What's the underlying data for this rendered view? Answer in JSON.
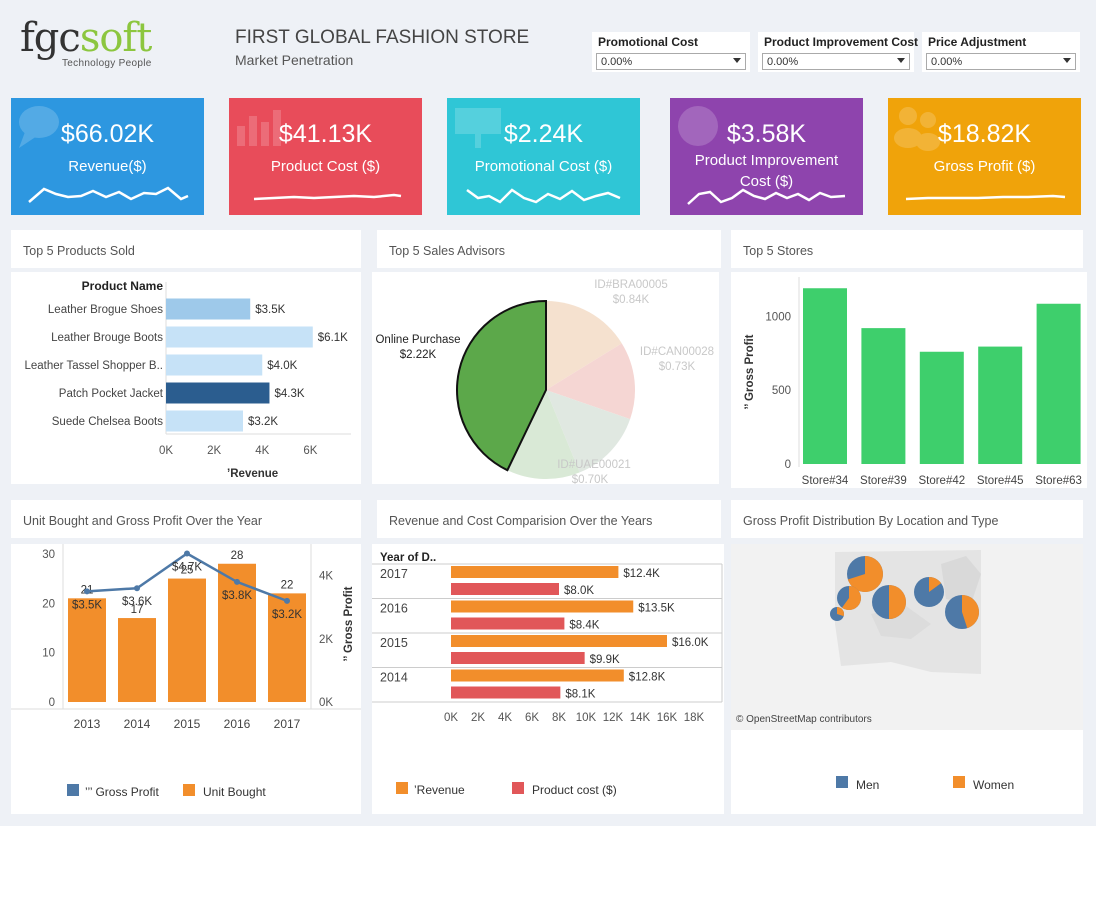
{
  "header": {
    "logo_main": "fgc",
    "logo_accent": "soft",
    "logo_tagline": "Technology People",
    "title": "FIRST GLOBAL FASHION STORE",
    "subtitle": "Market Penetration"
  },
  "params": [
    {
      "label": "Promotional Cost",
      "value": "0.00%"
    },
    {
      "label": "Product Improvement Cost",
      "value": "0.00%"
    },
    {
      "label": "Price Adjustment",
      "value": "0.00%"
    }
  ],
  "kpis": [
    {
      "value": "$66.02K",
      "label": "Revenue($)",
      "color": "#2d97e0"
    },
    {
      "value": "$41.13K",
      "label": "Product Cost ($)",
      "color": "#e84c5a"
    },
    {
      "value": "$2.24K",
      "label": "Promotional Cost ($)",
      "color": "#2fc6d6"
    },
    {
      "value": "$3.58K",
      "label": "Product Improvement Cost ($)",
      "color": "#8e44ad"
    },
    {
      "value": "$18.82K",
      "label": "Gross Profit ($)",
      "color": "#f0a30a"
    }
  ],
  "panels": {
    "products_title": "Top 5 Products Sold",
    "advisors_title": "Top 5 Sales Advisors",
    "stores_title": "Top 5 Stores",
    "units_title": "Unit Bought and Gross Profit Over the Year",
    "revcost_title": "Revenue and Cost Comparision Over the Years",
    "geo_title": "Gross Profit Distribution By Location and Type"
  },
  "chart_data": [
    {
      "type": "bar",
      "orientation": "horizontal",
      "title": "Top 5 Products Sold",
      "categories_header": "Product Name",
      "categories": [
        "Leather Brogue Shoes",
        "Leather Brouge Boots",
        "Leather Tassel Shopper B..",
        "Patch Pocket Jacket",
        "Suede Chelsea Boots"
      ],
      "values": [
        3.5,
        6.1,
        4.0,
        4.3,
        3.2
      ],
      "labels": [
        "$3.5K",
        "$6.1K",
        "$4.0K",
        "$4.3K",
        "$3.2K"
      ],
      "colors": [
        "#9ec9ea",
        "#c6e2f7",
        "#c6e2f7",
        "#2b5d8f",
        "#c6e2f7"
      ],
      "xlabel": "’Revenue",
      "xticks": [
        "0K",
        "2K",
        "4K",
        "6K"
      ],
      "xlim": [
        0,
        6.4
      ]
    },
    {
      "type": "pie",
      "title": "Top 5 Sales Advisors",
      "slices": [
        {
          "label": "Online Purchase",
          "value_label": "$2.22K",
          "value": 2.22,
          "color": "#5ca84a"
        },
        {
          "label": "ID#BRA00005",
          "value_label": "$0.84K",
          "value": 0.84,
          "color": "#f5e1cf"
        },
        {
          "label": "ID#CAN00028",
          "value_label": "$0.73K",
          "value": 0.73,
          "color": "#f5d6d3"
        },
        {
          "label": "ID#UAE00021",
          "value_label": "$0.70K",
          "value": 0.7,
          "color": "#e0e8e1"
        },
        {
          "label": "",
          "value_label": "",
          "value": 0.69,
          "color": "#d9e9d6"
        }
      ]
    },
    {
      "type": "bar",
      "title": "Top 5 Stores",
      "categories": [
        "Store#34",
        "Store#39",
        "Store#42",
        "Store#45",
        "Store#63"
      ],
      "values": [
        1190,
        920,
        760,
        795,
        1085
      ],
      "ylabel": "’’ Gross Profit",
      "yticks": [
        0,
        500,
        1000
      ],
      "ylim": [
        0,
        1300
      ],
      "color": "#3ecf6c"
    },
    {
      "type": "bar",
      "title": "Unit Bought and Gross Profit Over the Year",
      "categories": [
        "2013",
        "2014",
        "2015",
        "2016",
        "2017"
      ],
      "series": [
        {
          "name": "Unit Bought",
          "values": [
            21,
            17,
            25,
            28,
            22
          ],
          "color": "#f28e2b"
        },
        {
          "name": "’’’ Gross Profit",
          "values": [
            3.5,
            3.6,
            4.7,
            3.8,
            3.2
          ],
          "labels": [
            "$3.5K",
            "$3.6K",
            "$4.7K",
            "$3.8K",
            "$3.2K"
          ],
          "color": "#4e79a7"
        }
      ],
      "yticks_left": [
        0,
        10,
        20,
        30
      ],
      "ylim_left": [
        0,
        32
      ],
      "yticks_right": [
        "0K",
        "2K",
        "4K"
      ],
      "ylim_right": [
        0,
        5.0
      ],
      "ylabel_right": "’’ Gross Profit"
    },
    {
      "type": "bar",
      "orientation": "horizontal",
      "title": "Revenue and Cost Comparision Over the Years",
      "categories_header": "Year of D..",
      "categories": [
        "2017",
        "2016",
        "2015",
        "2014"
      ],
      "series": [
        {
          "name": "’Revenue",
          "values": [
            12.4,
            13.5,
            16.0,
            12.8
          ],
          "labels": [
            "$12.4K",
            "$13.5K",
            "$16.0K",
            "$12.8K"
          ],
          "color": "#f28e2b"
        },
        {
          "name": "Product cost ($)",
          "values": [
            8.0,
            8.4,
            9.9,
            8.1
          ],
          "labels": [
            "$8.0K",
            "$8.4K",
            "$9.9K",
            "$8.1K"
          ],
          "color": "#e15759"
        }
      ],
      "xticks": [
        "0K",
        "2K",
        "4K",
        "6K",
        "8K",
        "10K",
        "12K",
        "14K",
        "16K",
        "18K"
      ],
      "xlim": [
        0,
        18
      ]
    }
  ],
  "geo_legend": [
    {
      "label": "Men",
      "color": "#4e79a7"
    },
    {
      "label": "Women",
      "color": "#f28e2b"
    }
  ],
  "map_credit": "© OpenStreetMap contributors"
}
